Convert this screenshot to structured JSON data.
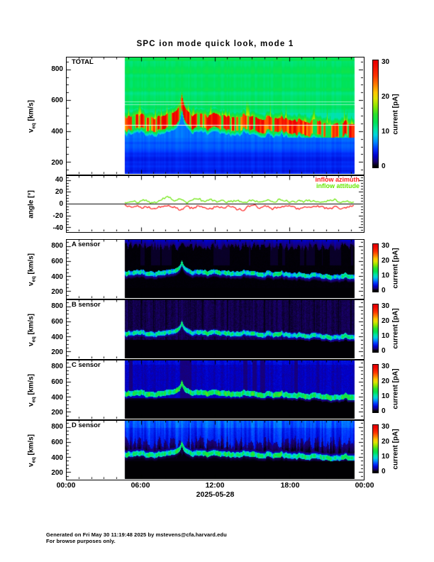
{
  "title": "SPC ion mode quick look, mode 1",
  "footer": {
    "line1": "Generated on Fri May 30 11:19:48 2025 by mstevens@cfa.harvard.edu",
    "line2": "For browse purposes only."
  },
  "x_axis": {
    "tick_labels": [
      "00:00",
      "06:00",
      "12:00",
      "18:00",
      "00:00"
    ],
    "date_label": "2025-05-28",
    "hours_range": [
      0,
      24
    ],
    "major_tick_hours": 6,
    "minor_tick_hours": 1
  },
  "colorbar": {
    "title": "current [pA]",
    "tick_values": [
      0,
      10,
      20,
      30
    ],
    "value_range": [
      0,
      30
    ],
    "stops": [
      [
        0.0,
        "#000000"
      ],
      [
        0.045,
        "#1a006e"
      ],
      [
        0.1,
        "#0000cd"
      ],
      [
        0.165,
        "#0033ff"
      ],
      [
        0.235,
        "#008cff"
      ],
      [
        0.3,
        "#00d4de"
      ],
      [
        0.36,
        "#00e6a0"
      ],
      [
        0.42,
        "#00e358"
      ],
      [
        0.5,
        "#2ce22c"
      ],
      [
        0.575,
        "#8ce800"
      ],
      [
        0.65,
        "#e0e400"
      ],
      [
        0.71,
        "#ffc800"
      ],
      [
        0.78,
        "#ff8200"
      ],
      [
        0.87,
        "#ff3300"
      ],
      [
        1.0,
        "#ee0000"
      ]
    ]
  },
  "coverage": {
    "start_hour": 4.67,
    "end_hour": 23.3
  },
  "beam_track": {
    "hours": [
      4.67,
      5.5,
      6.5,
      7.5,
      8.2,
      8.8,
      9.1,
      9.3,
      9.5,
      9.8,
      10.2,
      11,
      11.8,
      12.5,
      13.2,
      14,
      15,
      16,
      17,
      18,
      19,
      20,
      20.8,
      21.5,
      22.3,
      23.3
    ],
    "v_kms": [
      465,
      470,
      462,
      470,
      480,
      500,
      545,
      598,
      545,
      500,
      478,
      470,
      478,
      462,
      470,
      455,
      460,
      448,
      452,
      440,
      432,
      438,
      420,
      412,
      420,
      415
    ]
  },
  "chart_data": [
    {
      "id": "total",
      "type": "heatmap",
      "label": "TOTAL",
      "ylabel": {
        "pre": "v",
        "sub": "eq",
        "post": " [km/s]"
      },
      "y_ticks": [
        200,
        400,
        600,
        800
      ],
      "y_minor_step": 50,
      "y_range_kms": [
        123,
        877
      ],
      "value_units": "pA",
      "features": {
        "ambient_pA": 12.3,
        "ambient_top_boost": 1.3,
        "upper_cyan_pA": 10.6,
        "beam_core_pA": 27,
        "beam_var_pA": 7,
        "beam_up_kms": 32,
        "beam_down_kms": 55,
        "below_beam_yellow_pA": 15,
        "low_blue_top_pA": 6.2,
        "low_blue_bottom_pA": 3.6,
        "bottom_band_boost_pA": 0.9,
        "white_lines_kms": [
          440,
          572,
          590
        ],
        "spike_threshold": 0.55,
        "spike_max_kms": 130
      }
    },
    {
      "id": "angle",
      "type": "line",
      "label": null,
      "ylabel": {
        "pre": "angle [°]",
        "sub": "",
        "post": ""
      },
      "y_ticks": [
        -40,
        -20,
        0,
        20,
        40
      ],
      "y_minor_step": 5,
      "y_range_deg": [
        -47,
        47
      ],
      "series": [
        {
          "name": "inflow azimuth",
          "color": "#ff1a1a",
          "hours": [
            4.7,
            5.2,
            5.7,
            6.2,
            6.7,
            7.2,
            7.7,
            8.2,
            8.7,
            9.2,
            9.7,
            10.2,
            10.7,
            11.2,
            11.7,
            12.2,
            12.7,
            13.2,
            13.7,
            14.2,
            14.7,
            15.2,
            15.7,
            16.2,
            16.7,
            17.2,
            17.7,
            18.2,
            18.7,
            19.2,
            19.7,
            20.2,
            20.7,
            21.2,
            21.7,
            22.2,
            22.7,
            23.2
          ],
          "values": [
            -3,
            -6,
            -4,
            -8,
            -5,
            -9,
            -6,
            -3,
            -7,
            -10,
            -5,
            -8,
            -4,
            -6,
            -9,
            -5,
            -7,
            -4,
            -8,
            -11,
            -6,
            -4,
            -7,
            -5,
            -9,
            -6,
            -3,
            -6,
            -8,
            -5,
            -7,
            -4,
            -6,
            -9,
            -5,
            -8,
            -6,
            -5
          ]
        },
        {
          "name": "inflow attitude",
          "color": "#66e600",
          "hours": [
            4.7,
            5.2,
            5.7,
            6.2,
            6.7,
            7.2,
            7.7,
            8.2,
            8.7,
            9.2,
            9.7,
            10.2,
            10.7,
            11.2,
            11.7,
            12.2,
            12.7,
            13.2,
            13.7,
            14.2,
            14.7,
            15.2,
            15.7,
            16.2,
            16.7,
            17.2,
            17.7,
            18.2,
            18.7,
            19.2,
            19.7,
            20.2,
            20.7,
            21.2,
            21.7,
            22.2,
            22.7,
            23.2
          ],
          "values": [
            3,
            5,
            2,
            6,
            3,
            1,
            8,
            11,
            4,
            9,
            2,
            6,
            10,
            3,
            7,
            2,
            5,
            3,
            6,
            2,
            4,
            6,
            2,
            5,
            3,
            6,
            4,
            2,
            5,
            3,
            6,
            4,
            2,
            5,
            7,
            3,
            4,
            3
          ]
        }
      ]
    },
    {
      "id": "sensor_a",
      "type": "heatmap",
      "label": "A sensor",
      "ylabel": {
        "pre": "v",
        "sub": "eq",
        "post": " [km/s]"
      },
      "y_ticks": [
        200,
        400,
        600,
        800
      ],
      "y_minor_step": 50,
      "y_range_kms": [
        109,
        882
      ],
      "value_units": "pA",
      "features": {
        "bg_pA": 0.12,
        "fuzz_pA": 1.7,
        "fuzz_min_kms": 30,
        "fuzz_max_kms": 140,
        "beam_pA": 8.2,
        "beam_var_pA": 3.5,
        "core_boost_pA": 2.5,
        "halo_pA": 2.2
      }
    },
    {
      "id": "sensor_b",
      "type": "heatmap",
      "label": "B sensor",
      "ylabel": {
        "pre": "v",
        "sub": "eq",
        "post": " [km/s]"
      },
      "y_ticks": [
        200,
        400,
        600,
        800
      ],
      "y_minor_step": 50,
      "y_range_kms": [
        109,
        882
      ],
      "value_units": "pA",
      "features": {
        "bg_pA": 0.95,
        "bg_var_pA": 0.6,
        "beam_pA": 8.6,
        "beam_var_pA": 3.5,
        "core_boost_pA": 2.5,
        "halo_pA": 2.4,
        "hour_line_factor": 0.45,
        "floor_kms": 362
      }
    },
    {
      "id": "sensor_c",
      "type": "heatmap",
      "label": "C sensor",
      "ylabel": {
        "pre": "v",
        "sub": "eq",
        "post": " [km/s]"
      },
      "y_ticks": [
        200,
        400,
        600,
        800
      ],
      "y_minor_step": 50,
      "y_range_kms": [
        109,
        882
      ],
      "value_units": "pA",
      "features": {
        "bg_pA": 2.7,
        "bg_var_pA": 0.9,
        "top_boost_pA": 0.7,
        "beam_pA": 11,
        "beam_var_pA": 3.5,
        "core_boost_pA": 2.0,
        "halo_pA": 2.1,
        "floor_kms": 385
      }
    },
    {
      "id": "sensor_d",
      "type": "heatmap",
      "label": "D sensor",
      "ylabel": {
        "pre": "v",
        "sub": "eq",
        "post": " [km/s]"
      },
      "y_ticks": [
        200,
        400,
        600,
        800
      ],
      "y_minor_step": 50,
      "y_range_kms": [
        109,
        882
      ],
      "value_units": "pA",
      "features": {
        "streak_pA": 3.8,
        "between_pA": 1.1,
        "beam_pA": 9.8,
        "beam_var_pA": 3.5,
        "core_boost_pA": 2.3,
        "halo_above_pA": 2.6,
        "floor_kms": 350
      }
    }
  ]
}
